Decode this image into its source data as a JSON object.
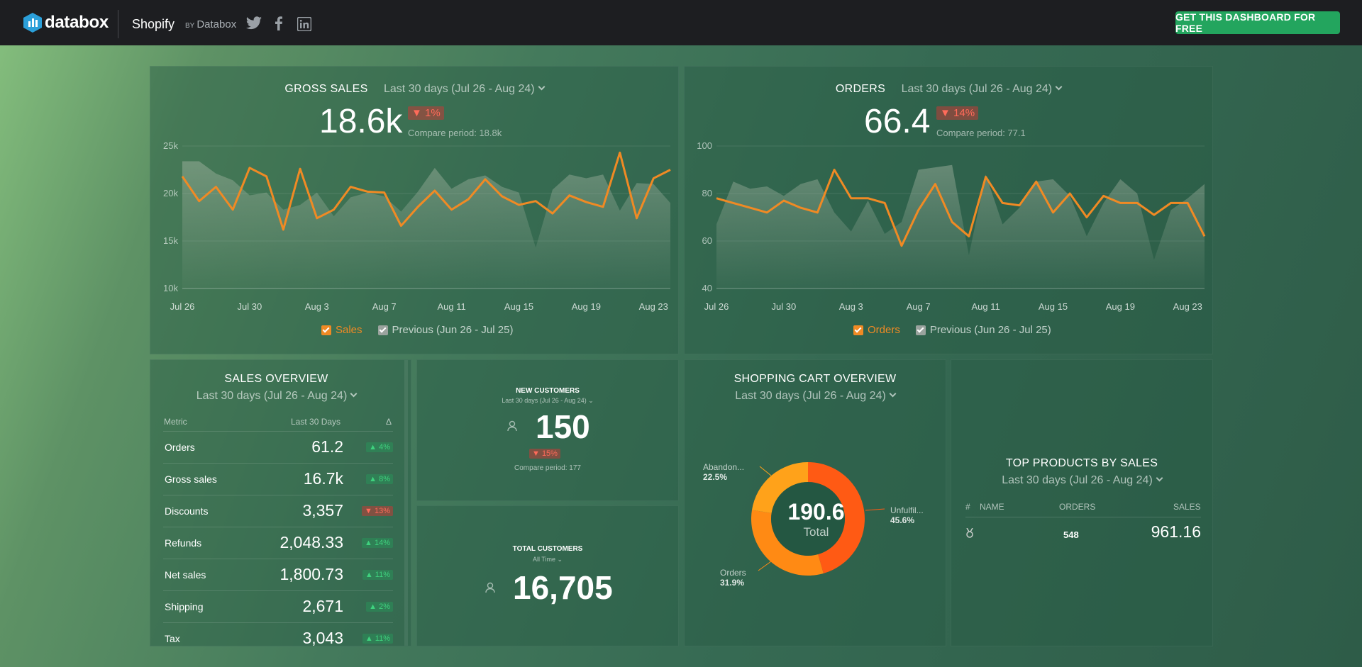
{
  "topbar": {
    "logo_text": "databox",
    "product": "Shopify",
    "by_prefix": "BY",
    "by_name": "Databox",
    "social": [
      "twitter-icon",
      "facebook-icon",
      "linkedin-icon"
    ],
    "cta_label": "GET THIS DASHBOARD FOR FREE"
  },
  "gross_sales": {
    "title": "GROSS SALES",
    "date_range": "Last 30 days (Jul 26 - Aug 24)",
    "value": "18.6k",
    "delta": "▼ 1%",
    "compare": "Compare period: 18.8k",
    "legend_current": "Sales",
    "legend_previous": "Previous (Jun 26 - Jul 25)"
  },
  "orders": {
    "title": "ORDERS",
    "date_range": "Last 30 days (Jul 26 - Aug 24)",
    "value": "66.4",
    "delta": "▼ 14%",
    "compare": "Compare period: 77.1",
    "legend_current": "Orders",
    "legend_previous": "Previous (Jun 26 - Jul 25)"
  },
  "chart_data": [
    {
      "type": "area",
      "title": "GROSS SALES",
      "x_ticks": [
        "Jul 26",
        "Jul 30",
        "Aug 3",
        "Aug 7",
        "Aug 11",
        "Aug 15",
        "Aug 19",
        "Aug 23"
      ],
      "y_ticks": [
        "25k",
        "20k",
        "15k",
        "10k"
      ],
      "ylim": [
        10000,
        25000
      ],
      "series": [
        {
          "name": "Sales",
          "color": "#f08a24",
          "values": [
            21800,
            19200,
            20700,
            18300,
            22700,
            21800,
            16200,
            22600,
            17400,
            18300,
            20700,
            20200,
            20100,
            16600,
            18600,
            20300,
            18300,
            19400,
            21500,
            19700,
            18800,
            19200,
            17900,
            19800,
            19100,
            18600,
            24300,
            17400,
            21600,
            22500
          ]
        },
        {
          "name": "Previous (Jun 26 - Jul 25)",
          "color": "#9aa39e",
          "values": [
            23400,
            23400,
            22100,
            21400,
            19800,
            20100,
            18300,
            18800,
            20100,
            17600,
            19600,
            20100,
            19700,
            18100,
            20200,
            22700,
            20500,
            21500,
            21900,
            20700,
            20100,
            14300,
            20400,
            22000,
            21600,
            22000,
            18200,
            21100,
            21000,
            19000
          ]
        }
      ]
    },
    {
      "type": "area",
      "title": "ORDERS",
      "x_ticks": [
        "Jul 26",
        "Jul 30",
        "Aug 3",
        "Aug 7",
        "Aug 11",
        "Aug 15",
        "Aug 19",
        "Aug 23"
      ],
      "y_ticks": [
        "100",
        "80",
        "60",
        "40"
      ],
      "ylim": [
        40,
        100
      ],
      "series": [
        {
          "name": "Orders",
          "color": "#f08a24",
          "values": [
            78,
            76,
            74,
            72,
            77,
            74,
            72,
            90,
            78,
            78,
            76,
            58,
            73,
            84,
            68,
            62,
            87,
            76,
            75,
            85,
            72,
            80,
            70,
            79,
            76,
            76,
            71,
            76,
            76,
            62
          ]
        },
        {
          "name": "Previous (Jun 26 - Jul 25)",
          "color": "#9aa39e",
          "values": [
            67,
            85,
            82,
            83,
            79,
            84,
            86,
            72,
            64,
            77,
            63,
            68,
            90,
            91,
            92,
            54,
            88,
            67,
            74,
            85,
            86,
            79,
            62,
            76,
            86,
            80,
            52,
            73,
            78,
            84
          ]
        }
      ]
    },
    {
      "type": "pie",
      "title": "SHOPPING CART OVERVIEW",
      "center_value": "190.6",
      "center_label": "Total",
      "slices": [
        {
          "label": "Unfulfil...",
          "value": 45.6,
          "color": "#ff5a14"
        },
        {
          "label": "Orders",
          "value": 31.9,
          "color": "#ff8a14"
        },
        {
          "label": "Abandon...",
          "value": 22.5,
          "color": "#ffa21a"
        }
      ]
    }
  ],
  "sales_overview": {
    "title": "SALES OVERVIEW",
    "date_range": "Last 30 days (Jul 26 - Aug 24)",
    "headers": [
      "Metric",
      "Last 30 Days",
      "Δ"
    ],
    "rows": [
      {
        "metric": "Orders",
        "value": "61.2",
        "delta": "▲ 4%",
        "dir": "up"
      },
      {
        "metric": "Gross sales",
        "value": "16.7k",
        "delta": "▲ 8%",
        "dir": "up"
      },
      {
        "metric": "Discounts",
        "value": "3,357",
        "delta": "▼ 13%",
        "dir": "down"
      },
      {
        "metric": "Refunds",
        "value": "2,048.33",
        "delta": "▲ 14%",
        "dir": "up"
      },
      {
        "metric": "Net sales",
        "value": "1,800.73",
        "delta": "▲ 11%",
        "dir": "up"
      },
      {
        "metric": "Shipping",
        "value": "2,671",
        "delta": "▲ 2%",
        "dir": "up"
      },
      {
        "metric": "Tax",
        "value": "3,043",
        "delta": "▲ 11%",
        "dir": "up"
      }
    ]
  },
  "new_customers": {
    "title": "NEW CUSTOMERS",
    "date_range": "Last 30 days (Jul 26 - Aug 24)",
    "value": "150",
    "delta": "▼ 15%",
    "compare": "Compare period: 177"
  },
  "total_customers": {
    "title": "TOTAL CUSTOMERS",
    "date_range": "All Time",
    "value": "16,705"
  },
  "cart": {
    "title": "SHOPPING CART OVERVIEW",
    "date_range": "Last 30 days (Jul 26 - Aug 24)",
    "center_value": "190.6",
    "center_label": "Total",
    "labels": [
      {
        "name": "Abandon...",
        "pct": "22.5%"
      },
      {
        "name": "Unfulfil...",
        "pct": "45.6%"
      },
      {
        "name": "Orders",
        "pct": "31.9%"
      }
    ]
  },
  "top_products": {
    "title": "TOP PRODUCTS BY SALES",
    "date_range": "Last 30 days (Jul 26 - Aug 24)",
    "headers": [
      "#",
      "NAME",
      "ORDERS",
      "SALES"
    ],
    "rows": [
      {
        "rank_icon": "medal-icon",
        "name": "",
        "orders": "548",
        "sales": "961.16"
      }
    ]
  }
}
